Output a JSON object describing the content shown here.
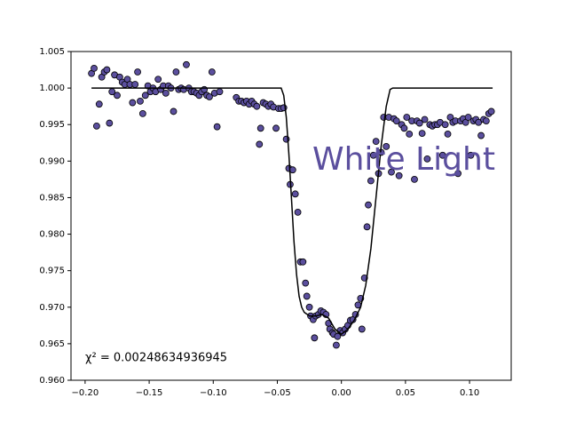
{
  "chart_data": {
    "type": "scatter",
    "annotations": [
      "White Light",
      "χ² = 0.00248634936945"
    ],
    "annotation_color": "#5b4f9e",
    "xlim": [
      -0.211,
      0.1325
    ],
    "ylim": [
      0.96,
      1.005
    ],
    "xticks": [
      {
        "value": -0.2,
        "label": "−0.20"
      },
      {
        "value": -0.15,
        "label": "−0.15"
      },
      {
        "value": -0.1,
        "label": "−0.10"
      },
      {
        "value": -0.05,
        "label": "−0.05"
      },
      {
        "value": 0,
        "label": "0.00"
      },
      {
        "value": 0.05,
        "label": "0.05"
      },
      {
        "value": 0.1,
        "label": "0.10"
      }
    ],
    "yticks": [
      {
        "value": 0.96,
        "label": "0.960"
      },
      {
        "value": 0.965,
        "label": "0.965"
      },
      {
        "value": 0.97,
        "label": "0.970"
      },
      {
        "value": 0.975,
        "label": "0.975"
      },
      {
        "value": 0.98,
        "label": "0.980"
      },
      {
        "value": 0.985,
        "label": "0.985"
      },
      {
        "value": 0.99,
        "label": "0.990"
      },
      {
        "value": 0.995,
        "label": "0.995"
      },
      {
        "value": 1,
        "label": "1.000"
      },
      {
        "value": 1.005,
        "label": "1.005"
      }
    ],
    "series": [
      {
        "type": "scatter",
        "color": "#5b4f9e",
        "x": [
          -0.195,
          -0.193,
          -0.191,
          -0.189,
          -0.187,
          -0.185,
          -0.183,
          -0.181,
          -0.179,
          -0.177,
          -0.175,
          -0.173,
          -0.171,
          -0.169,
          -0.167,
          -0.165,
          -0.163,
          -0.161,
          -0.159,
          -0.157,
          -0.155,
          -0.153,
          -0.151,
          -0.149,
          -0.147,
          -0.145,
          -0.143,
          -0.141,
          -0.139,
          -0.137,
          -0.135,
          -0.133,
          -0.131,
          -0.129,
          -0.127,
          -0.125,
          -0.123,
          -0.121,
          -0.119,
          -0.117,
          -0.115,
          -0.113,
          -0.111,
          -0.109,
          -0.107,
          -0.105,
          -0.103,
          -0.101,
          -0.099,
          -0.097,
          -0.095,
          -0.082,
          -0.08,
          -0.078,
          -0.076,
          -0.074,
          -0.072,
          -0.07,
          -0.068,
          -0.066,
          -0.064,
          -0.063,
          -0.061,
          -0.059,
          -0.057,
          -0.055,
          -0.053,
          -0.051,
          -0.049,
          -0.047,
          -0.045,
          -0.043,
          -0.041,
          -0.04,
          -0.038,
          -0.036,
          -0.034,
          -0.032,
          -0.03,
          -0.028,
          -0.027,
          -0.025,
          -0.024,
          -0.022,
          -0.021,
          -0.02,
          -0.018,
          -0.016,
          -0.014,
          -0.012,
          -0.01,
          -0.009,
          -0.007,
          -0.006,
          -0.004,
          -0.003,
          -0.001,
          0.001,
          0.003,
          0.005,
          0.007,
          0.009,
          0.011,
          0.013,
          0.015,
          0.016,
          0.018,
          0.02,
          0.021,
          0.023,
          0.025,
          0.027,
          0.029,
          0.031,
          0.033,
          0.035,
          0.037,
          0.039,
          0.041,
          0.043,
          0.045,
          0.047,
          0.049,
          0.051,
          0.053,
          0.055,
          0.057,
          0.059,
          0.061,
          0.063,
          0.065,
          0.067,
          0.069,
          0.071,
          0.073,
          0.075,
          0.077,
          0.079,
          0.081,
          0.083,
          0.085,
          0.087,
          0.089,
          0.091,
          0.093,
          0.095,
          0.097,
          0.099,
          0.101,
          0.103,
          0.105,
          0.107,
          0.109,
          0.111,
          0.113,
          0.115,
          0.117
        ],
        "values": [
          1.002,
          1.0027,
          0.9948,
          0.9978,
          1.0015,
          1.0022,
          1.0025,
          0.9952,
          0.9995,
          1.0018,
          0.999,
          1.0015,
          1.0008,
          1.0005,
          1.0012,
          1.0005,
          0.998,
          1.0005,
          1.0022,
          0.9982,
          0.9965,
          0.999,
          1.0003,
          0.9995,
          1.0,
          0.9995,
          1.0012,
          0.9998,
          1.0003,
          0.9993,
          1.0003,
          1.0,
          0.9968,
          1.0022,
          0.9998,
          1.0,
          0.9998,
          1.0032,
          1.0,
          0.9995,
          0.9995,
          0.9993,
          0.999,
          0.9995,
          0.9998,
          0.999,
          0.9988,
          1.0022,
          0.9993,
          0.9947,
          0.9995,
          0.9987,
          0.9982,
          0.9982,
          0.998,
          0.9982,
          0.9978,
          0.9982,
          0.9978,
          0.9975,
          0.9923,
          0.9945,
          0.998,
          0.9978,
          0.9975,
          0.9978,
          0.9974,
          0.9945,
          0.9972,
          0.9972,
          0.9973,
          0.993,
          0.989,
          0.9868,
          0.9888,
          0.9855,
          0.983,
          0.9762,
          0.9762,
          0.9733,
          0.9715,
          0.97,
          0.9688,
          0.9683,
          0.9658,
          0.9688,
          0.969,
          0.9695,
          0.9693,
          0.969,
          0.9678,
          0.967,
          0.9665,
          0.9663,
          0.9648,
          0.966,
          0.9668,
          0.9665,
          0.967,
          0.9675,
          0.9682,
          0.9683,
          0.969,
          0.9703,
          0.9712,
          0.967,
          0.974,
          0.981,
          0.984,
          0.9873,
          0.9908,
          0.9927,
          0.9883,
          0.9912,
          0.996,
          0.992,
          0.996,
          0.9885,
          0.9958,
          0.9955,
          0.988,
          0.995,
          0.9945,
          0.996,
          0.9937,
          0.9955,
          0.9875,
          0.9955,
          0.9952,
          0.9938,
          0.9957,
          0.9903,
          0.995,
          0.9948,
          0.995,
          0.995,
          0.9953,
          0.9908,
          0.995,
          0.9937,
          0.996,
          0.9953,
          0.9955,
          0.9883,
          0.9955,
          0.9958,
          0.9953,
          0.996,
          0.9908,
          0.9955,
          0.9957,
          0.9953,
          0.9935,
          0.9957,
          0.9955,
          0.9965,
          0.9968
        ]
      },
      {
        "type": "line",
        "color": "#000000",
        "x": [
          -0.195,
          -0.047,
          -0.045,
          -0.043,
          -0.041,
          -0.039,
          -0.037,
          -0.035,
          -0.033,
          -0.031,
          -0.029,
          -0.025,
          -0.02,
          -0.015,
          -0.01,
          -0.005,
          0,
          0.005,
          0.01,
          0.015,
          0.019,
          0.023,
          0.027,
          0.031,
          0.035,
          0.038,
          0.04,
          0.118
        ],
        "values": [
          1.0,
          1.0,
          0.999,
          0.996,
          0.991,
          0.985,
          0.979,
          0.9745,
          0.9715,
          0.97,
          0.9693,
          0.9688,
          0.9688,
          0.969,
          0.9685,
          0.967,
          0.9663,
          0.967,
          0.9682,
          0.97,
          0.973,
          0.978,
          0.985,
          0.992,
          0.9975,
          0.9998,
          1.0,
          1.0
        ]
      }
    ]
  }
}
